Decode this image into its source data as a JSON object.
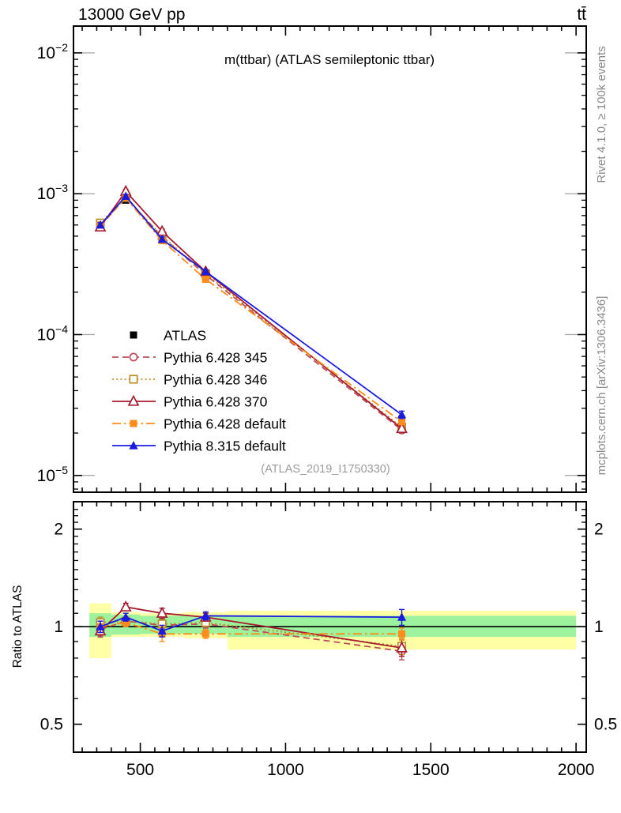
{
  "header": {
    "left_title": "13000 GeV pp",
    "right_title": "tt̄"
  },
  "side_notes": {
    "top": "Rivet 4.1.0, ≥ 100k events",
    "bottom": "mcplots.cern.ch [arXiv:1306.3436]"
  },
  "colors": {
    "frame": "#000000",
    "grid_stub": "#a6a6a6",
    "yellow_band": "#ffffa6",
    "green_band": "#9df29d",
    "watermark": "#9a9aa0",
    "side_note": "#8a8a8a"
  },
  "chart_data": [
    {
      "id": "main",
      "type": "line",
      "title": "m(ttbar) (ATLAS semileptonic ttbar)",
      "watermark": "(ATLAS_2019_I1750330)",
      "yscale": "log",
      "xlim": [
        270,
        2035
      ],
      "ylim": [
        7.6e-06,
        0.0155
      ],
      "xticks": [
        500,
        1000,
        1500,
        2000
      ],
      "x_minor_step": 50,
      "yticks": [
        0.01,
        0.001,
        0.0001,
        1e-05
      ],
      "bin_edges": [
        325,
        400,
        500,
        650,
        800,
        2000
      ],
      "x": [
        362.5,
        450,
        575,
        725,
        1400
      ],
      "series": [
        {
          "name": "ATLAS",
          "color": "#000000",
          "marker": "square-filled",
          "line": "none",
          "values": [
            0.0006,
            0.0009,
            0.00049,
            0.00026,
            2.5e-05
          ]
        },
        {
          "name": "Pythia 6.428 345",
          "color": "#bb4e5a",
          "marker": "circle-open",
          "line": "dashed",
          "values": [
            0.00059,
            0.00094,
            0.000495,
            0.000265,
            2.1e-05
          ]
        },
        {
          "name": "Pythia 6.428 346",
          "color": "#bd8d2c",
          "marker": "square-open",
          "line": "dotted",
          "values": [
            0.00062,
            0.00094,
            0.0005,
            0.00027,
            2.2e-05
          ]
        },
        {
          "name": "Pythia 6.428 370",
          "color": "#a51c30",
          "marker": "triangle-open",
          "line": "solid",
          "values": [
            0.00058,
            0.00104,
            0.00054,
            0.00028,
            2.15e-05
          ]
        },
        {
          "name": "Pythia 6.428 default",
          "color": "#ff8c1a",
          "marker": "square-filled",
          "line": "dashdot",
          "values": [
            0.0006,
            0.00093,
            0.000465,
            0.000247,
            2.4e-05
          ]
        },
        {
          "name": "Pythia 8.315 default",
          "color": "#1b1be0",
          "marker": "triangle-filled",
          "line": "solid",
          "values": [
            0.0006,
            0.00096,
            0.000475,
            0.00028,
            2.7e-05
          ]
        }
      ]
    },
    {
      "id": "ratio",
      "type": "line",
      "ylabel": "Ratio to ATLAS",
      "yscale": "log",
      "ylim": [
        0.41,
        2.43
      ],
      "yticks": [
        0.5,
        1,
        2
      ],
      "x": [
        362.5,
        450,
        575,
        725,
        1400
      ],
      "bin_edges": [
        325,
        400,
        500,
        650,
        800,
        2000
      ],
      "bands": {
        "yellow": [
          [
            0.8,
            1.18
          ],
          [
            0.93,
            1.11
          ],
          [
            0.93,
            1.1
          ],
          [
            0.92,
            1.11
          ],
          [
            0.85,
            1.12
          ]
        ],
        "green": [
          [
            0.93,
            1.1
          ],
          [
            0.945,
            1.09
          ],
          [
            0.95,
            1.08
          ],
          [
            0.95,
            1.08
          ],
          [
            0.93,
            1.08
          ]
        ]
      },
      "series": [
        {
          "name": "Pythia 6.428 345",
          "ratio": [
            0.98,
            1.04,
            1.01,
            1.02,
            0.84
          ],
          "err": [
            0.04,
            0.03,
            0.04,
            0.03,
            0.05
          ]
        },
        {
          "name": "Pythia 6.428 346",
          "ratio": [
            1.03,
            1.04,
            1.02,
            1.03,
            0.87
          ],
          "err": [
            0.04,
            0.03,
            0.04,
            0.03,
            0.05
          ]
        },
        {
          "name": "Pythia 6.428 370",
          "ratio": [
            0.97,
            1.15,
            1.1,
            1.07,
            0.86
          ],
          "err": [
            0.04,
            0.03,
            0.04,
            0.03,
            0.05
          ]
        },
        {
          "name": "Pythia 6.428 default",
          "ratio": [
            1.0,
            1.03,
            0.95,
            0.95,
            0.95
          ],
          "err": [
            0.04,
            0.03,
            0.05,
            0.03,
            0.04
          ]
        },
        {
          "name": "Pythia 8.315 default",
          "ratio": [
            1.0,
            1.07,
            0.97,
            1.08,
            1.07
          ],
          "err": [
            0.04,
            0.03,
            0.04,
            0.03,
            0.06
          ]
        }
      ]
    }
  ]
}
